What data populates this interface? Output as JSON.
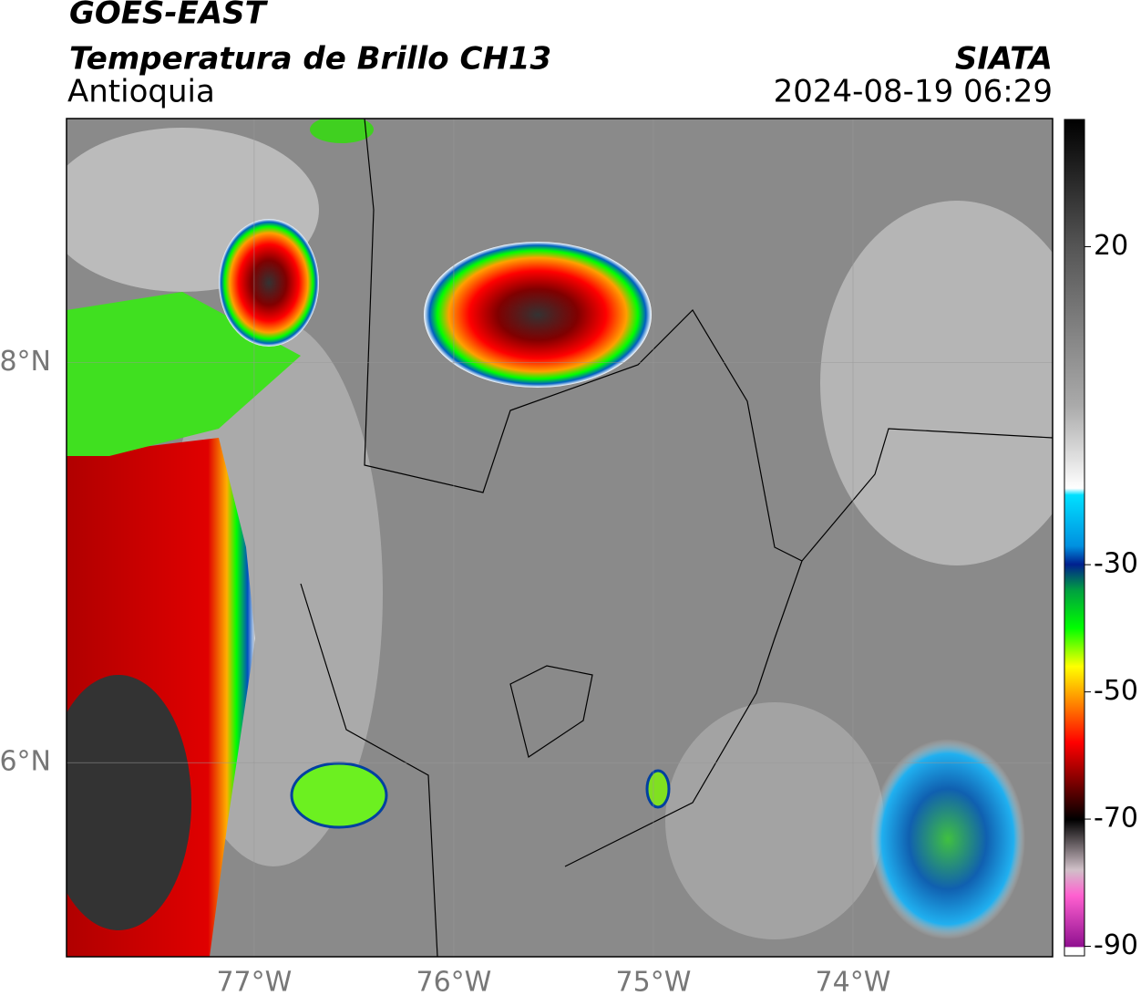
{
  "header": {
    "title": "GOES-EAST",
    "subtitle": "Temperatura de Brillo CH13",
    "region": "Antioquia",
    "source": "SIATA",
    "datetime": "2024-08-19 06:29"
  },
  "map": {
    "xlim": [
      -77.94,
      -73.0
    ],
    "ylim": [
      5.03,
      9.22
    ],
    "xticks": [
      {
        "value": -77,
        "label": "77°W"
      },
      {
        "value": -76,
        "label": "76°W"
      },
      {
        "value": -75,
        "label": "75°W"
      },
      {
        "value": -74,
        "label": "74°W"
      }
    ],
    "yticks": [
      {
        "value": 8,
        "label": "8°N"
      },
      {
        "value": 6,
        "label": "6°N"
      }
    ],
    "grid": true
  },
  "colorbar": {
    "lim": [
      -91.5,
      40
    ],
    "ticks": [
      20,
      -30,
      -50,
      -70,
      -90
    ]
  }
}
